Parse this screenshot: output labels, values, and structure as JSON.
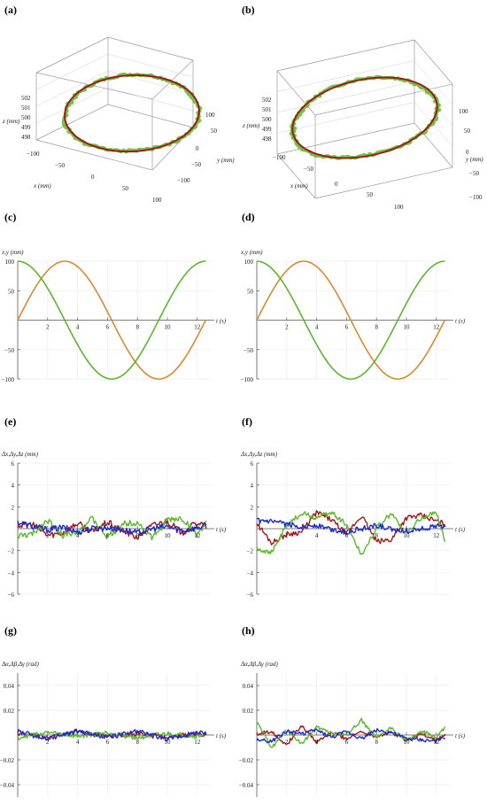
{
  "colors": {
    "x": "#a01a1a",
    "y": "#5ab82a",
    "z": "#1a2ad0",
    "ref": "#d98a2c",
    "box": "#9a9a9a",
    "grid": "#d0d0d0"
  },
  "panels": [
    {
      "id": "a",
      "label": "(a)",
      "kind": "3d",
      "zlabel": "z (mm)",
      "ylabel": "y (mm)",
      "xlabel": "x (mm)",
      "zticks": [
        "502",
        "501",
        "500",
        "499",
        "498"
      ],
      "yticks": [
        "100",
        "50",
        "0",
        "−50",
        "−100"
      ],
      "xticks": [
        "−100",
        "−50",
        "0",
        "50",
        "100"
      ]
    },
    {
      "id": "b",
      "label": "(b)",
      "kind": "3d",
      "zlabel": "z (mm)",
      "ylabel": "y (mm)",
      "xlabel": "x (mm)",
      "zticks": [
        "502",
        "501",
        "500",
        "499",
        "498"
      ],
      "yticks": [
        "100",
        "50",
        "0",
        "−50",
        "−100"
      ],
      "xticks": [
        "−100",
        "−50",
        "0",
        "50",
        "100"
      ]
    },
    {
      "id": "c",
      "label": "(c)",
      "kind": "line2d",
      "ylabel": "x,y (mm)",
      "xlabel": "t (s)",
      "ylim": [
        -100,
        100
      ],
      "yticks": [
        "100",
        "50",
        "−50",
        "−100"
      ],
      "xticks": [
        "2",
        "4",
        "6",
        "8",
        "10",
        "12"
      ]
    },
    {
      "id": "d",
      "label": "(d)",
      "kind": "line2d",
      "ylabel": "x,y (mm)",
      "xlabel": "t (s)",
      "ylim": [
        -100,
        100
      ],
      "yticks": [
        "100",
        "50",
        "−50",
        "−100"
      ],
      "xticks": [
        "2",
        "4",
        "6",
        "8",
        "10",
        "12"
      ]
    },
    {
      "id": "e",
      "label": "(e)",
      "kind": "err",
      "ylabel": "Δx,Δy,Δz (mm)",
      "xlabel": "t (s)",
      "ylim": [
        -6,
        6
      ],
      "yticks": [
        "6",
        "4",
        "2",
        "−2",
        "−4",
        "−6"
      ],
      "xticks": [
        "2",
        "4",
        "6",
        "8",
        "10",
        "12"
      ]
    },
    {
      "id": "f",
      "label": "(f)",
      "kind": "err",
      "ylabel": "Δx,Δy,Δz (mm)",
      "xlabel": "t (s)",
      "ylim": [
        -6,
        6
      ],
      "yticks": [
        "6",
        "4",
        "2",
        "−2",
        "−4",
        "−6"
      ],
      "xticks": [
        "2",
        "4",
        "6",
        "8",
        "10",
        "12"
      ]
    },
    {
      "id": "g",
      "label": "(g)",
      "kind": "err",
      "ylabel": "Δα,Δβ,Δγ (rad)",
      "xlabel": "t (s)",
      "ylim": [
        -0.05,
        0.05
      ],
      "yticks": [
        "0.04",
        "0.02",
        "−0.02",
        "−0.04"
      ],
      "xticks": [
        "2",
        "4",
        "6",
        "8",
        "10",
        "12"
      ]
    },
    {
      "id": "h",
      "label": "(h)",
      "kind": "err",
      "ylabel": "Δα,Δβ,Δγ (rad)",
      "xlabel": "t (s)",
      "ylim": [
        -0.05,
        0.05
      ],
      "yticks": [
        "0.04",
        "0.02",
        "−0.02",
        "−0.04"
      ],
      "xticks": [
        "2",
        "4",
        "6",
        "8",
        "10",
        "12"
      ]
    }
  ],
  "chart_data": [
    {
      "type": "line",
      "panel": "c",
      "x_range": [
        0,
        12.6
      ],
      "series": [
        {
          "values_fn": "100·sin(t/2)",
          "amplitude": 100,
          "period": 12.566,
          "phase": "sin"
        },
        {
          "values_fn": "100·cos(t/2)",
          "amplitude": 100,
          "period": 12.566,
          "phase": "cos"
        }
      ],
      "ylim": [
        -100,
        100
      ]
    },
    {
      "type": "line",
      "panel": "d",
      "x_range": [
        0,
        12.6
      ],
      "series": [
        {
          "values_fn": "100·sin(t/2)",
          "amplitude": 100,
          "period": 12.566,
          "phase": "sin"
        },
        {
          "values_fn": "100·cos(t/2)",
          "amplitude": 100,
          "period": 12.566,
          "phase": "cos"
        }
      ],
      "ylim": [
        -100,
        100
      ]
    },
    {
      "type": "line",
      "panel": "e",
      "ylim": [
        -6,
        6
      ],
      "series": [
        {
          "t": [
            0,
            1,
            2,
            3,
            4,
            5,
            6,
            7,
            8,
            9,
            10,
            11,
            12,
            12.6
          ],
          "values": [
            0.3,
            0.4,
            -0.6,
            -0.4,
            0.5,
            -0.3,
            0.6,
            -0.2,
            -0.8,
            0.3,
            0.7,
            -0.4,
            0.6,
            0.2
          ]
        },
        {
          "t": [
            0,
            1,
            2,
            3,
            4,
            5,
            6,
            7,
            8,
            9,
            10,
            11,
            12,
            12.6
          ],
          "values": [
            -0.7,
            -0.5,
            0.8,
            -0.6,
            -0.2,
            0.9,
            -0.8,
            0.4,
            0.6,
            -0.9,
            0.8,
            0.9,
            -0.5,
            0.5
          ]
        },
        {
          "t": [
            0,
            1,
            2,
            3,
            4,
            5,
            6,
            7,
            8,
            9,
            10,
            11,
            12,
            12.6
          ],
          "values": [
            0.6,
            0.2,
            -0.1,
            0.1,
            -0.3,
            0.0,
            0.1,
            -0.1,
            -0.4,
            0.0,
            0.2,
            -0.2,
            0.1,
            0.3
          ]
        }
      ]
    },
    {
      "type": "line",
      "panel": "f",
      "ylim": [
        -6,
        6
      ],
      "series": [
        {
          "t": [
            0,
            1,
            2,
            3,
            4,
            5,
            6,
            7,
            8,
            9,
            10,
            11,
            12,
            12.6
          ],
          "values": [
            0.5,
            -1.3,
            -0.5,
            -0.3,
            1.5,
            0.8,
            -0.5,
            1.2,
            -1.2,
            -1.0,
            1.0,
            1.2,
            0.7,
            0.4
          ]
        },
        {
          "t": [
            0,
            1,
            2,
            3,
            4,
            5,
            6,
            7,
            8,
            9,
            10,
            11,
            12,
            12.6
          ],
          "values": [
            -1.8,
            -2.2,
            0.3,
            1.4,
            1.0,
            1.5,
            0.4,
            -2.4,
            0.1,
            1.4,
            -0.5,
            1.0,
            1.5,
            -1.3
          ]
        },
        {
          "t": [
            0,
            1,
            2,
            3,
            4,
            5,
            6,
            7,
            8,
            9,
            10,
            11,
            12,
            12.6
          ],
          "values": [
            0.7,
            0.6,
            0.4,
            0.2,
            0.3,
            -0.1,
            -0.3,
            0.0,
            0.3,
            -0.1,
            -0.2,
            0.0,
            0.2,
            0.3
          ]
        }
      ]
    },
    {
      "type": "line",
      "panel": "g",
      "ylim": [
        -0.05,
        0.05
      ],
      "series": [
        {
          "t": [
            0,
            2,
            4,
            6,
            8,
            10,
            12,
            12.6
          ],
          "values": [
            0.001,
            -0.002,
            0.002,
            -0.001,
            0.001,
            -0.002,
            0.001,
            0.0
          ]
        },
        {
          "t": [
            0,
            2,
            4,
            6,
            8,
            10,
            12,
            12.6
          ],
          "values": [
            -0.002,
            0.002,
            -0.001,
            0.002,
            -0.002,
            0.001,
            -0.001,
            0.001
          ]
        },
        {
          "t": [
            0,
            2,
            4,
            6,
            8,
            10,
            12,
            12.6
          ],
          "values": [
            0.003,
            -0.003,
            0.003,
            -0.002,
            0.003,
            -0.003,
            0.002,
            0.001
          ]
        }
      ]
    },
    {
      "type": "line",
      "panel": "h",
      "ylim": [
        -0.05,
        0.05
      ],
      "series": [
        {
          "t": [
            0,
            1,
            2,
            3,
            4,
            5,
            6,
            7,
            8,
            9,
            10,
            11,
            12,
            12.6
          ],
          "values": [
            0.001,
            0.003,
            -0.008,
            0.008,
            -0.006,
            0.002,
            -0.003,
            0.003,
            -0.001,
            0.002,
            -0.004,
            0.001,
            -0.004,
            0.0
          ]
        },
        {
          "t": [
            0,
            1,
            2,
            3,
            4,
            5,
            6,
            7,
            8,
            9,
            10,
            11,
            12,
            12.6
          ],
          "values": [
            0.01,
            -0.01,
            0.004,
            -0.007,
            0.006,
            0.002,
            0.0,
            0.012,
            -0.003,
            0.006,
            -0.005,
            0.003,
            -0.002,
            0.007
          ]
        },
        {
          "t": [
            0,
            1,
            2,
            3,
            4,
            5,
            6,
            7,
            8,
            9,
            10,
            11,
            12,
            12.6
          ],
          "values": [
            -0.004,
            -0.005,
            0.003,
            0.001,
            0.004,
            -0.002,
            0.003,
            -0.003,
            0.004,
            0.002,
            -0.003,
            -0.004,
            -0.005,
            -0.002
          ]
        }
      ]
    }
  ]
}
